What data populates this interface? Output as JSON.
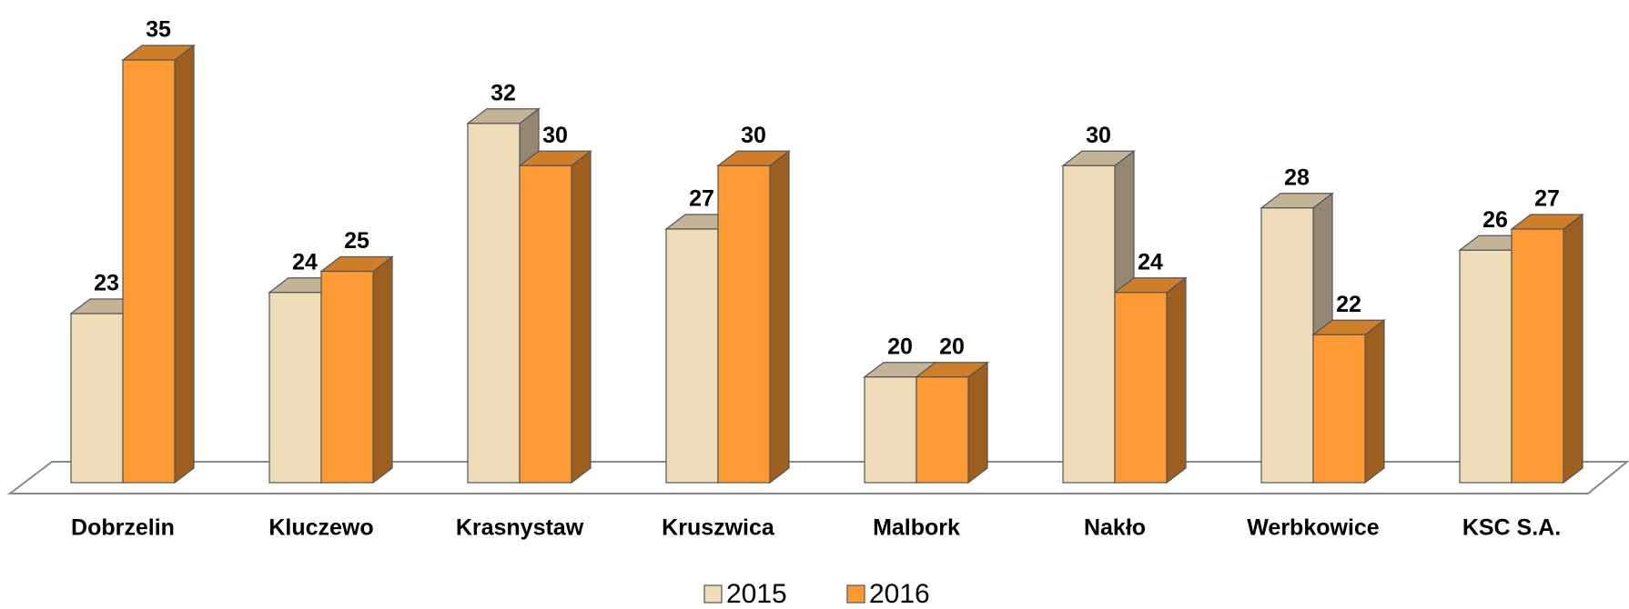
{
  "chart_data": {
    "type": "bar3d",
    "categories": [
      "Dobrzelin",
      "Kluczewo",
      "Krasnystaw",
      "Kruszwica",
      "Malbork",
      "Nakło",
      "Werbkowice",
      "KSC S.A."
    ],
    "series": [
      {
        "name": "2015",
        "color": "#efdcb8",
        "values": [
          23,
          24,
          32,
          27,
          20,
          30,
          28,
          26
        ]
      },
      {
        "name": "2016",
        "color": "#fd9a33",
        "values": [
          35,
          25,
          30,
          30,
          20,
          24,
          22,
          27
        ]
      }
    ],
    "ylim": [
      15,
      35
    ]
  }
}
